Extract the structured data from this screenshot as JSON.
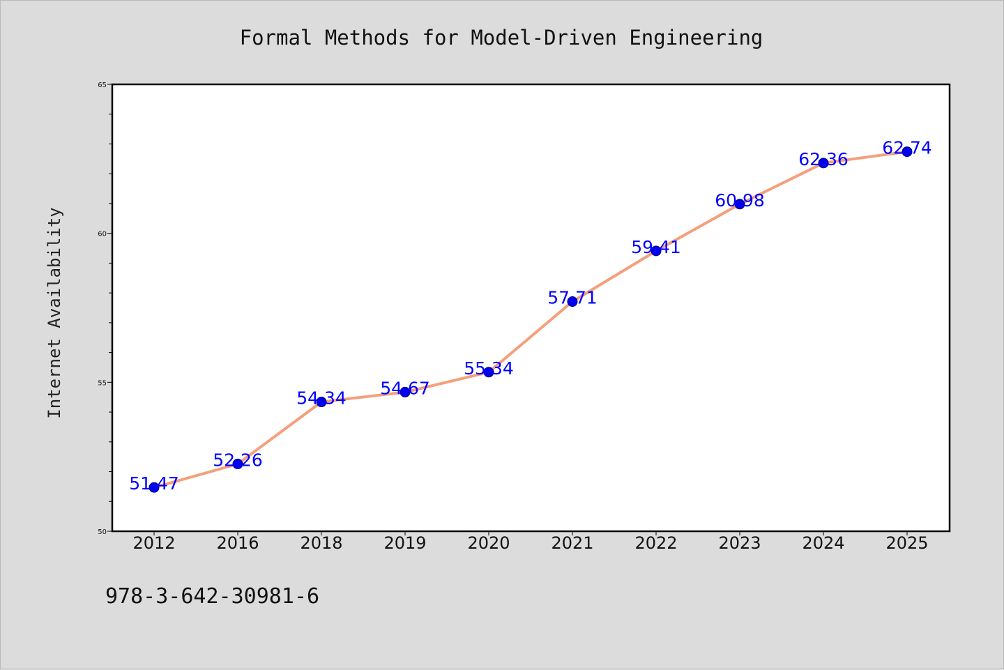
{
  "chart_data": {
    "type": "line",
    "title": "Formal Methods for Model-Driven Engineering",
    "xlabel": "",
    "ylabel": "Internet Availability",
    "categories": [
      "2012",
      "2016",
      "2018",
      "2019",
      "2020",
      "2021",
      "2022",
      "2023",
      "2024",
      "2025"
    ],
    "values": [
      51.47,
      52.26,
      54.34,
      54.67,
      55.34,
      57.71,
      59.41,
      60.98,
      62.36,
      62.74
    ],
    "data_labels": [
      "51.47",
      "52.26",
      "54.34",
      "54.67",
      "55.34",
      "57.71",
      "59.41",
      "60.98",
      "62.36",
      "62.74"
    ],
    "ylim": [
      50,
      65
    ],
    "yticks": [
      50,
      55,
      60,
      65
    ],
    "ytick_labels": [
      "50",
      "55",
      "60",
      "65"
    ],
    "grid": false,
    "legend": "none",
    "colors": {
      "line": "#f4a07c",
      "marker": "#0000ee",
      "data_label": "#0000ff",
      "background": "#dcdcdc",
      "plot_area": "#ffffff"
    }
  },
  "footer_text": "978-3-642-30981-6"
}
